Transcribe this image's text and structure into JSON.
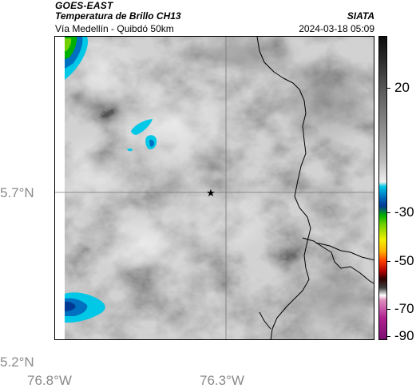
{
  "header": {
    "satellite": "GOES-EAST",
    "product": "Temperatura de Brillo CH13",
    "subtitle": "Vía Medellín - Quibdó 50km",
    "organization": "SIATA",
    "timestamp": "2024-03-18 05:09"
  },
  "map": {
    "latitude_labels": [
      "5.7°N",
      "5.2°N"
    ],
    "longitude_labels": [
      "76.8°W",
      "76.3°W"
    ],
    "marker": "star-icon"
  },
  "colorbar": {
    "tick_labels": [
      "20",
      "-30",
      "-50",
      "-70",
      "-90"
    ]
  },
  "colors": {
    "background": "#ffffff",
    "frame": "#000000",
    "axis_text": "#8a8a8a",
    "cold_cloud_cyan": "#00c8e6",
    "cold_cloud_blue": "#0070c0",
    "cold_cloud_green": "#00b000"
  }
}
